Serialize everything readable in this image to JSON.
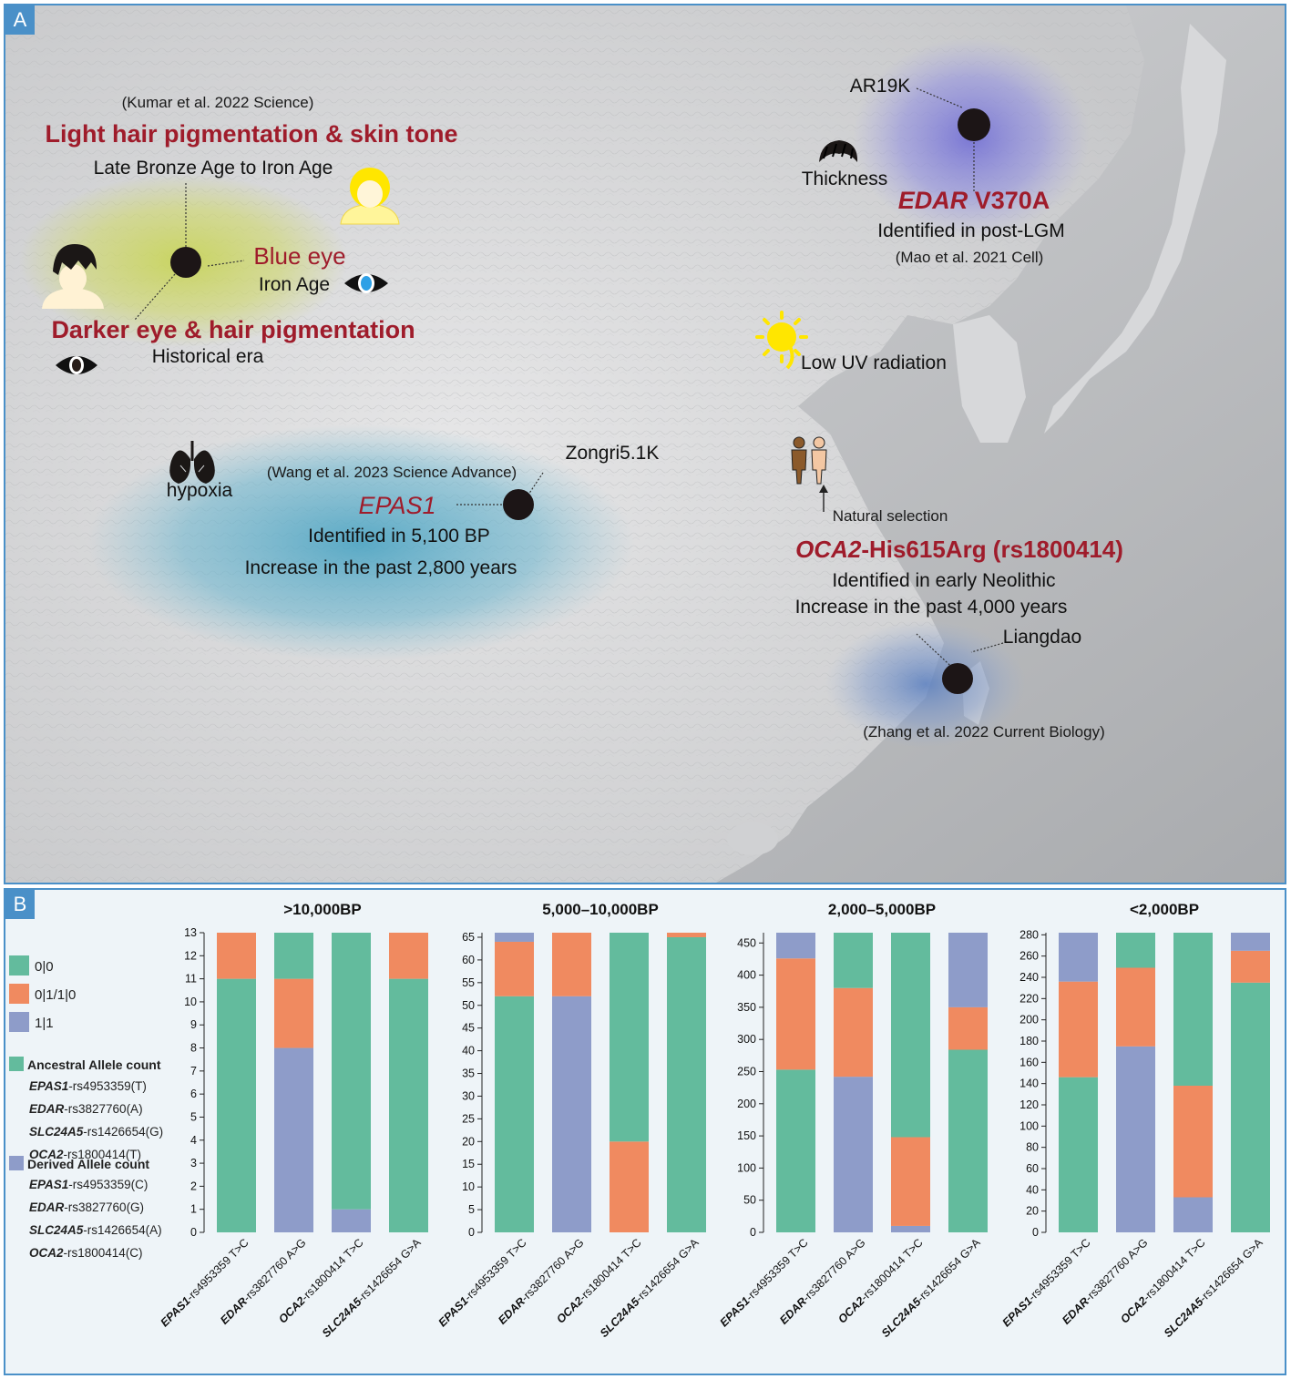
{
  "panel_a": {
    "letter": "A",
    "kumar_citation": "(Kumar et al. 2022 Science)",
    "light_hair_title": "Light hair pigmentation & skin tone",
    "late_bronze": "Late Bronze Age to Iron Age",
    "blue_eye": "Blue eye",
    "iron_age": "Iron Age",
    "darker_title": "Darker eye & hair pigmentation",
    "historical_era": "Historical era",
    "ar19k": "AR19K",
    "thickness": "Thickness",
    "edar_gene": "EDAR",
    "edar_variant": " V370A",
    "edar_identified": "Identified in post-LGM",
    "mao_citation": "(Mao et al. 2021 Cell)",
    "low_uv": "Low UV radiation",
    "hypoxia": "hypoxia",
    "zongri": "Zongri5.1K",
    "wang_citation": "(Wang et al. 2023 Science Advance)",
    "epas1": "EPAS1",
    "epas1_identified": "Identified in 5,100 BP",
    "epas1_increase": "Increase in the past 2,800 years",
    "natural_selection": "Natural selection",
    "oca2_gene": "OCA2",
    "oca2_variant": "-His615Arg (rs1800414)",
    "oca2_identified": "Identified in early Neolithic",
    "oca2_increase": "Increase in the past 4,000 years",
    "liangdao": "Liangdao",
    "zhang_citation": "(Zhang et al. 2022 Current Biology)"
  },
  "panel_b": {
    "letter": "B",
    "legend": {
      "genotypes": [
        {
          "label": "0|0",
          "color": "#63bb9d"
        },
        {
          "label": "0|1/1|0",
          "color": "#f08a60"
        },
        {
          "label": "1|1",
          "color": "#8e9cc9"
        }
      ],
      "ancestral_title": "Ancestral Allele count",
      "ancestral_items": [
        {
          "gene": "EPAS1",
          "rest": "-rs4953359(T)"
        },
        {
          "gene": "EDAR",
          "rest": "-rs3827760(A)"
        },
        {
          "gene": "SLC24A5",
          "rest": "-rs1426654(G)"
        },
        {
          "gene": "OCA2",
          "rest": "-rs1800414(T)"
        }
      ],
      "derived_title": "Derived Allele count",
      "derived_items": [
        {
          "gene": "EPAS1",
          "rest": "-rs4953359(C)"
        },
        {
          "gene": "EDAR",
          "rest": "-rs3827760(G)"
        },
        {
          "gene": "SLC24A5",
          "rest": "-rs1426654(A)"
        },
        {
          "gene": "OCA2",
          "rest": "-rs1800414(C)"
        }
      ]
    }
  },
  "chart_data": [
    {
      "type": "bar",
      "stacked": true,
      "title": ">10,000BP",
      "categories": [
        "EPAS1-rs4953359 T>C",
        "EDAR-rs3827760 A>G",
        "OCA2-rs1800414 T>C",
        "SLC24A5-rs1426654 G>A"
      ],
      "category_genes": [
        "EPAS1",
        "EDAR",
        "OCA2",
        "SLC24A5"
      ],
      "category_rest": [
        "-rs4953359 T>C",
        "-rs3827760 A>G",
        "-rs1800414 T>C",
        "-rs1426654 G>A"
      ],
      "ylim": [
        0,
        13
      ],
      "yticks": [
        0,
        1,
        2,
        3,
        4,
        5,
        6,
        7,
        8,
        9,
        10,
        11,
        12,
        13
      ],
      "series": [
        {
          "name": "1|1",
          "values": [
            0,
            8,
            1,
            0
          ]
        },
        {
          "name": "0|1/1|0",
          "values": [
            2,
            3,
            0,
            2
          ]
        },
        {
          "name": "0|0",
          "values": [
            11,
            2,
            12,
            11
          ]
        }
      ],
      "series_order_bottom_to_top": [
        [
          "0|0",
          "0|1/1|0",
          "1|1"
        ],
        [
          "1|1",
          "0|1/1|0",
          "0|0"
        ],
        [
          "1|1",
          "0|1/1|0",
          "0|0"
        ],
        [
          "0|0",
          "0|1/1|0",
          "1|1"
        ]
      ]
    },
    {
      "type": "bar",
      "stacked": true,
      "title": "5,000–10,000BP",
      "categories": [
        "EPAS1-rs4953359 T>C",
        "EDAR-rs3827760 A>G",
        "OCA2-rs1800414 T>C",
        "SLC24A5-rs1426654 G>A"
      ],
      "category_genes": [
        "EPAS1",
        "EDAR",
        "OCA2",
        "SLC24A5"
      ],
      "category_rest": [
        "-rs4953359 T>C",
        "-rs3827760 A>G",
        "-rs1800414 T>C",
        "-rs1426654 G>A"
      ],
      "ylim": [
        0,
        66
      ],
      "yticks": [
        0,
        5,
        10,
        15,
        20,
        25,
        30,
        35,
        40,
        45,
        50,
        55,
        60,
        65
      ],
      "series": [
        {
          "name": "1|1",
          "values": [
            2,
            52,
            0,
            0
          ]
        },
        {
          "name": "0|1/1|0",
          "values": [
            12,
            14,
            20,
            1
          ]
        },
        {
          "name": "0|0",
          "values": [
            52,
            0,
            46,
            65
          ]
        }
      ],
      "series_order_bottom_to_top": [
        [
          "0|0",
          "0|1/1|0",
          "1|1"
        ],
        [
          "1|1",
          "0|1/1|0",
          "0|0"
        ],
        [
          "1|1",
          "0|1/1|0",
          "0|0"
        ],
        [
          "0|0",
          "0|1/1|0",
          "1|1"
        ]
      ]
    },
    {
      "type": "bar",
      "stacked": true,
      "title": "2,000–5,000BP",
      "categories": [
        "EPAS1-rs4953359 T>C",
        "EDAR-rs3827760 A>G",
        "OCA2-rs1800414 T>C",
        "SLC24A5-rs1426654 G>A"
      ],
      "category_genes": [
        "EPAS1",
        "EDAR",
        "OCA2",
        "SLC24A5"
      ],
      "category_rest": [
        "-rs4953359 T>C",
        "-rs3827760 A>G",
        "-rs1800414 T>C",
        "-rs1426654 G>A"
      ],
      "ylim": [
        0,
        466
      ],
      "yticks": [
        0,
        50,
        100,
        150,
        200,
        250,
        300,
        350,
        400,
        450
      ],
      "series": [
        {
          "name": "1|1",
          "values": [
            40,
            242,
            10,
            116
          ]
        },
        {
          "name": "0|1/1|0",
          "values": [
            173,
            138,
            138,
            66
          ]
        },
        {
          "name": "0|0",
          "values": [
            253,
            86,
            318,
            284
          ]
        }
      ],
      "series_order_bottom_to_top": [
        [
          "0|0",
          "0|1/1|0",
          "1|1"
        ],
        [
          "1|1",
          "0|1/1|0",
          "0|0"
        ],
        [
          "1|1",
          "0|1/1|0",
          "0|0"
        ],
        [
          "0|0",
          "0|1/1|0",
          "1|1"
        ]
      ]
    },
    {
      "type": "bar",
      "stacked": true,
      "title": "<2,000BP",
      "categories": [
        "EPAS1-rs4953359 T>C",
        "EDAR-rs3827760 A>G",
        "OCA2-rs1800414 T>C",
        "SLC24A5-rs1426654 G>A"
      ],
      "category_genes": [
        "EPAS1",
        "EDAR",
        "OCA2",
        "SLC24A5"
      ],
      "category_rest": [
        "-rs4953359 T>C",
        "-rs3827760 A>G",
        "-rs1800414 T>C",
        "-rs1426654 G>A"
      ],
      "ylim": [
        0,
        282
      ],
      "yticks": [
        0,
        20,
        40,
        60,
        80,
        100,
        120,
        140,
        160,
        180,
        200,
        220,
        240,
        260,
        280
      ],
      "series": [
        {
          "name": "1|1",
          "values": [
            46,
            175,
            33,
            17
          ]
        },
        {
          "name": "0|1/1|0",
          "values": [
            90,
            74,
            105,
            30
          ]
        },
        {
          "name": "0|0",
          "values": [
            146,
            33,
            144,
            235
          ]
        }
      ],
      "series_order_bottom_to_top": [
        [
          "0|0",
          "0|1/1|0",
          "1|1"
        ],
        [
          "1|1",
          "0|1/1|0",
          "0|0"
        ],
        [
          "1|1",
          "0|1/1|0",
          "0|0"
        ],
        [
          "0|0",
          "0|1/1|0",
          "1|1"
        ]
      ]
    }
  ]
}
